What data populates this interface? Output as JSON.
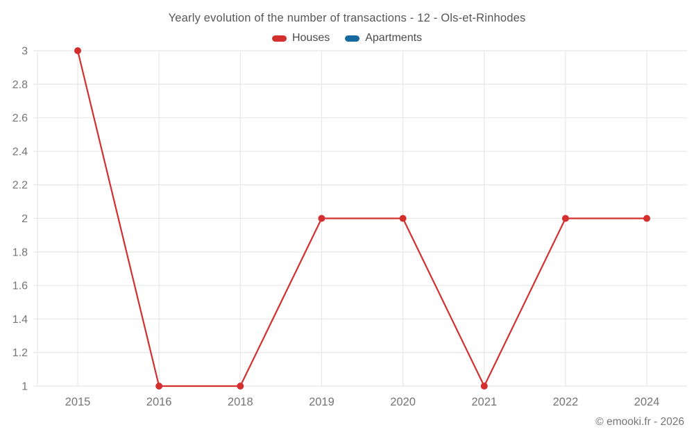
{
  "chart_data": {
    "type": "line",
    "title": "Yearly evolution of the number of transactions - 12 - Ols-et-Rinhodes",
    "categories": [
      "2015",
      "2016",
      "2018",
      "2019",
      "2020",
      "2021",
      "2022",
      "2024"
    ],
    "series": [
      {
        "name": "Houses",
        "color": "#d32f2f",
        "values": [
          3,
          1,
          1,
          2,
          2,
          1,
          2,
          2
        ]
      },
      {
        "name": "Apartments",
        "color": "#16699f",
        "values": []
      }
    ],
    "ylim": [
      1,
      3
    ],
    "y_tick_labels": [
      "1",
      "1.2",
      "1.4",
      "1.6",
      "1.8",
      "2",
      "2.2",
      "2.4",
      "2.6",
      "2.8",
      "3"
    ],
    "grid": true,
    "legend_position": "top",
    "colors": {
      "grid": "#e8e8e8",
      "axis_text": "#757575",
      "title_text": "#565656"
    }
  },
  "footer": {
    "copyright": "© emooki.fr - 2026"
  }
}
